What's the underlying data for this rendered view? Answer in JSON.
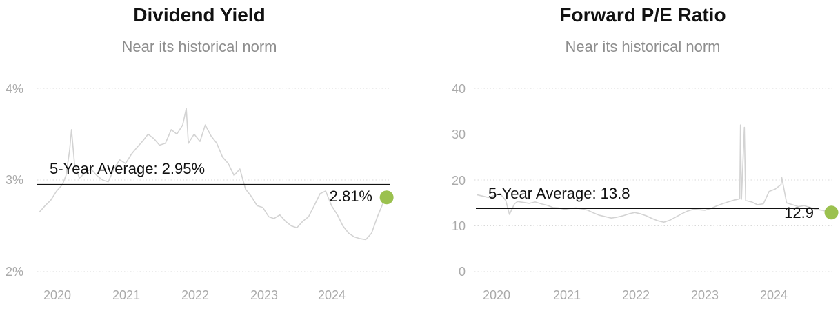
{
  "colors": {
    "series": "#d3d3d3",
    "avg_line": "#111111",
    "grid": "#d9d9d9",
    "marker": "#9bc14f",
    "title": "#111111",
    "subtitle": "#8e8e8e",
    "tick": "#aaaaaa"
  },
  "chart_data": [
    {
      "type": "line",
      "title": "Dividend Yield",
      "subtitle": "Near its historical norm",
      "xlabel": "",
      "ylabel": "",
      "x_ticks": [
        "2020",
        "2021",
        "2022",
        "2023",
        "2024"
      ],
      "y_ticks": [
        "4%",
        "3%",
        "2%"
      ],
      "ylim": [
        2,
        4
      ],
      "xlim": [
        "2019-09-20",
        "2024-11-05"
      ],
      "grid": true,
      "average": {
        "label": "5-Year Average: 2.95%",
        "value": 2.95
      },
      "current": {
        "label": "2.81%",
        "date": "2024-10-20",
        "value": 2.81
      },
      "series": [
        {
          "x": [
            "2019-10-01",
            "2019-11-01",
            "2019-12-01",
            "2020-01-01",
            "2020-02-01",
            "2020-02-20",
            "2020-03-10",
            "2020-03-20",
            "2020-04-05",
            "2020-05-01",
            "2020-06-01",
            "2020-07-01",
            "2020-08-01",
            "2020-09-01",
            "2020-10-01",
            "2020-11-01",
            "2020-12-01",
            "2021-01-01",
            "2021-02-01",
            "2021-03-01",
            "2021-04-01",
            "2021-05-01",
            "2021-06-01",
            "2021-07-01",
            "2021-08-01",
            "2021-09-01",
            "2021-10-01",
            "2021-11-01",
            "2021-11-20",
            "2021-12-01",
            "2022-01-01",
            "2022-02-01",
            "2022-03-01",
            "2022-04-01",
            "2022-05-01",
            "2022-06-01",
            "2022-07-01",
            "2022-08-01",
            "2022-09-01",
            "2022-10-01",
            "2022-11-01",
            "2022-12-01",
            "2023-01-01",
            "2023-02-01",
            "2023-03-01",
            "2023-04-01",
            "2023-05-01",
            "2023-06-01",
            "2023-07-01",
            "2023-08-01",
            "2023-09-01",
            "2023-10-01",
            "2023-11-01",
            "2023-12-01",
            "2024-01-01",
            "2024-02-01",
            "2024-03-01",
            "2024-04-01",
            "2024-05-01",
            "2024-06-01",
            "2024-07-01",
            "2024-08-01",
            "2024-09-01",
            "2024-10-01",
            "2024-10-20"
          ],
          "values": [
            2.65,
            2.72,
            2.78,
            2.88,
            2.95,
            3.05,
            3.32,
            3.55,
            3.18,
            3.02,
            3.08,
            3.12,
            3.05,
            3.0,
            2.98,
            3.12,
            3.22,
            3.18,
            3.28,
            3.35,
            3.42,
            3.5,
            3.45,
            3.38,
            3.4,
            3.55,
            3.5,
            3.6,
            3.78,
            3.4,
            3.5,
            3.42,
            3.6,
            3.48,
            3.4,
            3.25,
            3.18,
            3.05,
            3.12,
            2.9,
            2.82,
            2.72,
            2.7,
            2.6,
            2.58,
            2.62,
            2.55,
            2.5,
            2.48,
            2.55,
            2.6,
            2.72,
            2.85,
            2.88,
            2.72,
            2.62,
            2.5,
            2.42,
            2.38,
            2.36,
            2.35,
            2.42,
            2.6,
            2.75,
            2.81
          ]
        }
      ]
    },
    {
      "type": "line",
      "title": "Forward P/E Ratio",
      "subtitle": "Near its historical norm",
      "xlabel": "",
      "ylabel": "",
      "x_ticks": [
        "2020",
        "2021",
        "2022",
        "2023",
        "2024"
      ],
      "y_ticks": [
        "40",
        "30",
        "20",
        "10",
        "0"
      ],
      "ylim": [
        0,
        40
      ],
      "xlim": [
        "2019-09-20",
        "2024-11-05"
      ],
      "grid": true,
      "average": {
        "label": "5-Year Average: 13.8",
        "value": 13.8
      },
      "current": {
        "label": "12.9",
        "date": "2024-10-20",
        "value": 12.9
      },
      "series": [
        {
          "x": [
            "2019-10-01",
            "2019-11-01",
            "2019-12-01",
            "2020-01-01",
            "2020-02-01",
            "2020-03-01",
            "2020-03-20",
            "2020-04-15",
            "2020-05-01",
            "2020-06-01",
            "2020-07-01",
            "2020-08-01",
            "2020-09-01",
            "2020-10-01",
            "2020-11-01",
            "2020-12-01",
            "2021-01-01",
            "2021-02-01",
            "2021-03-01",
            "2021-04-01",
            "2021-05-01",
            "2021-06-01",
            "2021-07-01",
            "2021-08-01",
            "2021-09-01",
            "2021-10-01",
            "2021-11-01",
            "2021-12-01",
            "2022-01-01",
            "2022-02-01",
            "2022-03-01",
            "2022-04-01",
            "2022-05-01",
            "2022-06-01",
            "2022-07-01",
            "2022-08-01",
            "2022-09-01",
            "2022-10-01",
            "2022-11-01",
            "2022-12-01",
            "2023-01-01",
            "2023-02-01",
            "2023-03-01",
            "2023-04-01",
            "2023-05-01",
            "2023-06-01",
            "2023-07-01",
            "2023-07-05",
            "2023-07-10",
            "2023-07-25",
            "2023-08-01",
            "2023-09-01",
            "2023-10-01",
            "2023-11-01",
            "2023-12-01",
            "2024-01-01",
            "2024-02-01",
            "2024-02-05",
            "2024-03-01",
            "2024-04-01",
            "2024-05-01",
            "2024-06-01",
            "2024-07-01",
            "2024-08-01",
            "2024-09-01",
            "2024-10-01",
            "2024-10-20"
          ],
          "values": [
            16.8,
            16.5,
            16.2,
            16.6,
            17.0,
            15.5,
            12.5,
            14.8,
            15.3,
            15.1,
            14.9,
            15.2,
            14.8,
            14.5,
            14.0,
            13.9,
            13.6,
            13.8,
            13.9,
            13.7,
            13.4,
            12.8,
            12.3,
            12.0,
            11.7,
            11.9,
            12.2,
            12.6,
            12.9,
            12.6,
            12.2,
            11.6,
            11.1,
            10.8,
            11.2,
            11.9,
            12.6,
            13.2,
            13.6,
            13.5,
            13.4,
            13.8,
            14.3,
            14.8,
            15.2,
            15.6,
            15.9,
            32.0,
            15.8,
            31.5,
            15.5,
            15.2,
            14.6,
            14.8,
            17.5,
            18.0,
            19.0,
            20.5,
            15.0,
            14.6,
            14.2,
            14.4,
            14.0,
            13.6,
            13.4,
            13.1,
            12.9
          ]
        }
      ]
    }
  ]
}
